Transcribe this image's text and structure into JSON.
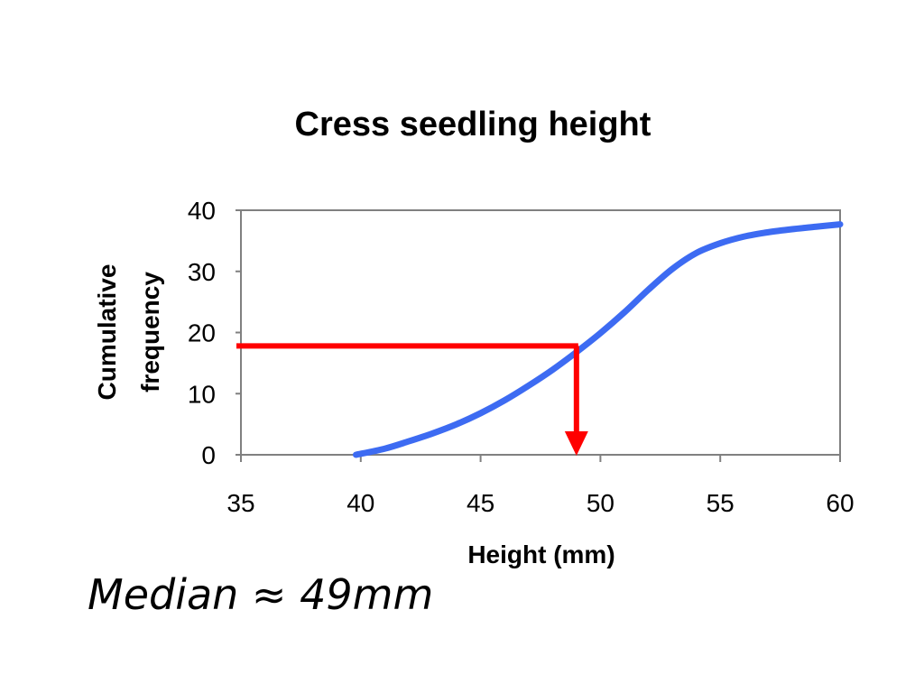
{
  "chart_data": {
    "type": "line",
    "title": "Cress seedling height",
    "xlabel": "Height (mm)",
    "ylabel_lines": [
      "Cumulative",
      "frequency"
    ],
    "xlim": [
      35,
      60
    ],
    "ylim": [
      0,
      40
    ],
    "x_ticks": [
      35,
      40,
      45,
      50,
      55,
      60
    ],
    "y_ticks": [
      0,
      10,
      20,
      30,
      40
    ],
    "grid": false,
    "series": [
      {
        "color": "#3d6bf2",
        "x": [
          39.8,
          41,
          42,
          43,
          44,
          45,
          46,
          47,
          48,
          49,
          50,
          51,
          52,
          53,
          54,
          55,
          56,
          57,
          58,
          59,
          60
        ],
        "y": [
          0,
          1,
          2.2,
          3.5,
          5,
          6.8,
          8.9,
          11.3,
          13.9,
          16.8,
          19.9,
          23.3,
          27,
          30.4,
          33,
          34.6,
          35.7,
          36.4,
          36.9,
          37.3,
          37.7
        ]
      }
    ],
    "annotation": {
      "color": "#ff0000",
      "y": 17.8,
      "x": 49
    }
  },
  "note": "Median ≈ 49mm"
}
